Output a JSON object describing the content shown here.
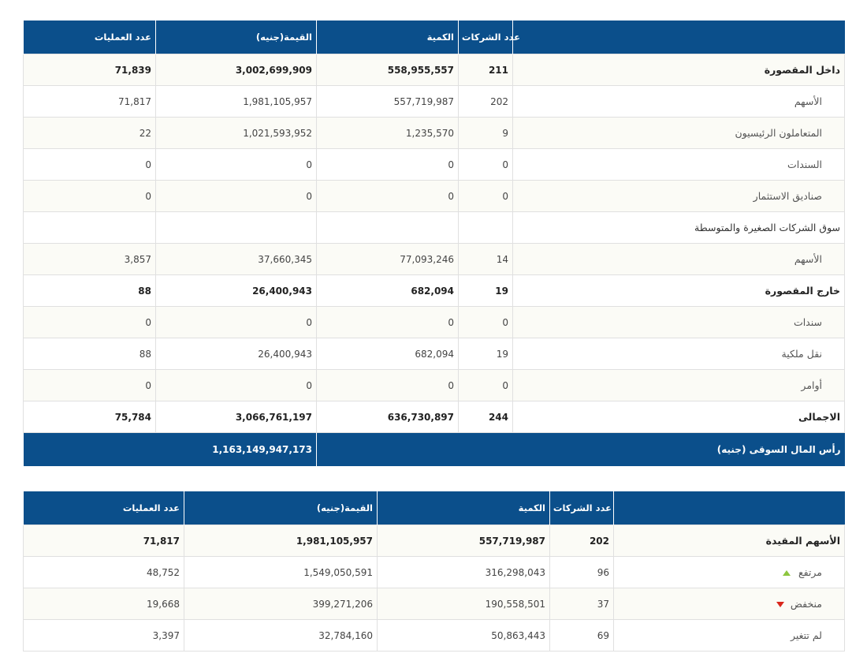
{
  "table1": {
    "header": {
      "count": "عدد الشركات",
      "quantity": "الكمية",
      "value": "القيمة(جنيه)",
      "operations": "عدد العمليات"
    },
    "rows": [
      {
        "label": "داخل المقصورة",
        "count": "211",
        "quantity": "558,955,557",
        "value": "3,002,699,909",
        "operations": "71,839"
      },
      {
        "label": "الأسهم",
        "count": "202",
        "quantity": "557,719,987",
        "value": "1,981,105,957",
        "operations": "71,817"
      },
      {
        "label": "المتعاملون الرئيسيون",
        "count": "9",
        "quantity": "1,235,570",
        "value": "1,021,593,952",
        "operations": "22"
      },
      {
        "label": "السندات",
        "count": "0",
        "quantity": "0",
        "value": "0",
        "operations": "0"
      },
      {
        "label": "صناديق الاستثمار",
        "count": "0",
        "quantity": "0",
        "value": "0",
        "operations": "0"
      },
      {
        "label": "سوق الشركات الصغيرة والمتوسطة"
      },
      {
        "label": "الأسهم",
        "count": "14",
        "quantity": "77,093,246",
        "value": "37,660,345",
        "operations": "3,857"
      },
      {
        "label": "خارج المقصورة",
        "count": "19",
        "quantity": "682,094",
        "value": "26,400,943",
        "operations": "88"
      },
      {
        "label": "سندات",
        "count": "0",
        "quantity": "0",
        "value": "0",
        "operations": "0"
      },
      {
        "label": "نقل ملكية",
        "count": "19",
        "quantity": "682,094",
        "value": "26,400,943",
        "operations": "88"
      },
      {
        "label": "أوامر",
        "count": "0",
        "quantity": "0",
        "value": "0",
        "operations": "0"
      },
      {
        "label": "الاجمالى",
        "count": "244",
        "quantity": "636,730,897",
        "value": "3,066,761,197",
        "operations": "75,784"
      }
    ],
    "footer": {
      "label": "رأس المال السوقى (جنيه)",
      "value": "1,163,149,947,173"
    }
  },
  "table2": {
    "header": {
      "count": "عدد الشركات",
      "quantity": "الكمية",
      "value": "القيمة(جنيه)",
      "operations": "عدد العمليات"
    },
    "rows": [
      {
        "label": "الأسهم المقيدة",
        "count": "202",
        "quantity": "557,719,987",
        "value": "1,981,105,957",
        "operations": "71,817"
      },
      {
        "label": "مرتفع",
        "count": "96",
        "quantity": "316,298,043",
        "value": "1,549,050,591",
        "operations": "48,752"
      },
      {
        "label": "منخفض",
        "count": "37",
        "quantity": "190,558,501",
        "value": "399,271,206",
        "operations": "19,668"
      },
      {
        "label": "لم تتغير",
        "count": "69",
        "quantity": "50,863,443",
        "value": "32,784,160",
        "operations": "3,397"
      }
    ]
  }
}
